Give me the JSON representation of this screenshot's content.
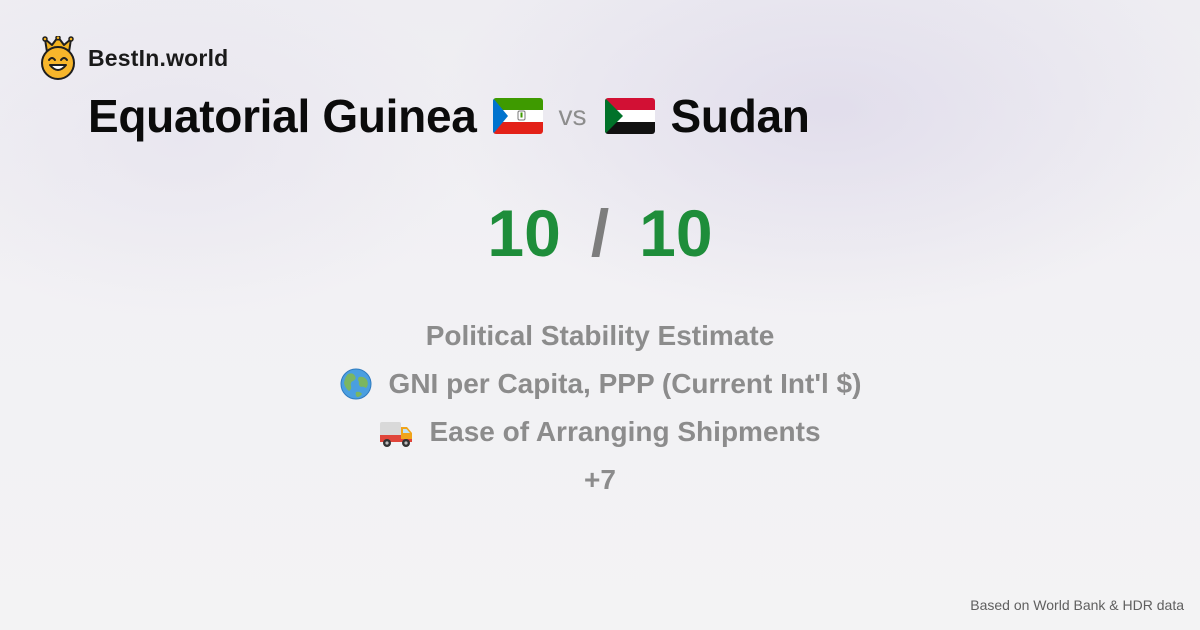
{
  "brand": {
    "name": "BestIn.world",
    "logo_icon": "crowned-smiley-icon"
  },
  "comparison": {
    "country_a": {
      "name": "Equatorial Guinea",
      "flag_icon": "equatorial-guinea-flag-icon"
    },
    "separator": "vs",
    "country_b": {
      "name": "Sudan",
      "flag_icon": "sudan-flag-icon"
    }
  },
  "score": {
    "a": "10",
    "separator": "/",
    "b": "10",
    "color": "#1e8d3a"
  },
  "metrics": [
    {
      "label": "Political Stability Estimate",
      "icon": ""
    },
    {
      "label": "GNI per Capita, PPP (Current Int'l $)",
      "icon": "globe-icon"
    },
    {
      "label": "Ease of Arranging Shipments",
      "icon": "delivery-truck-icon"
    }
  ],
  "more_metrics": "+7",
  "footer": {
    "source_note": "Based on World Bank & HDR data"
  }
}
